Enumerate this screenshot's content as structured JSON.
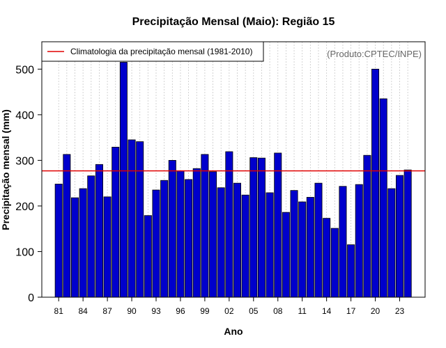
{
  "chart_data": {
    "type": "bar",
    "title": "Precipitação Mensal (Maio): Região 15",
    "xlabel": "Ano",
    "ylabel": "Precipitação mensal (mm)",
    "credit": "(Produto:CPTEC/INPE)",
    "years": [
      1981,
      1982,
      1983,
      1984,
      1985,
      1986,
      1987,
      1988,
      1989,
      1990,
      1991,
      1992,
      1993,
      1994,
      1995,
      1996,
      1997,
      1998,
      1999,
      2000,
      2001,
      2002,
      2003,
      2004,
      2005,
      2006,
      2007,
      2008,
      2009,
      2010,
      2011,
      2012,
      2013,
      2014,
      2015,
      2016,
      2017,
      2018,
      2019,
      2020,
      2021,
      2022,
      2023,
      2024
    ],
    "values": [
      248,
      313,
      218,
      238,
      266,
      291,
      220,
      329,
      515,
      345,
      341,
      179,
      235,
      256,
      300,
      277,
      258,
      282,
      313,
      275,
      240,
      319,
      250,
      224,
      306,
      305,
      229,
      316,
      186,
      234,
      209,
      219,
      250,
      173,
      151,
      243,
      115,
      247,
      311,
      500,
      435,
      238,
      267,
      279
    ],
    "xtick_labels": [
      "81",
      "84",
      "87",
      "90",
      "93",
      "96",
      "99",
      "02",
      "05",
      "08",
      "11",
      "14",
      "17",
      "20",
      "23"
    ],
    "xtick_years": [
      1981,
      1984,
      1987,
      1990,
      1993,
      1996,
      1999,
      2002,
      2005,
      2008,
      2011,
      2014,
      2017,
      2020,
      2023
    ],
    "yticks": [
      0,
      100,
      200,
      300,
      400,
      500
    ],
    "ylim": [
      0,
      560
    ],
    "climatology": 277,
    "legend": {
      "label": "Climatologia da precipitação mensal (1981-2010)",
      "position": "top-left"
    },
    "colors": {
      "bar_fill": "#0000cc",
      "bar_edge": "#000000",
      "climatology_line": "#e00000",
      "grid": "#c8c8c8"
    }
  }
}
